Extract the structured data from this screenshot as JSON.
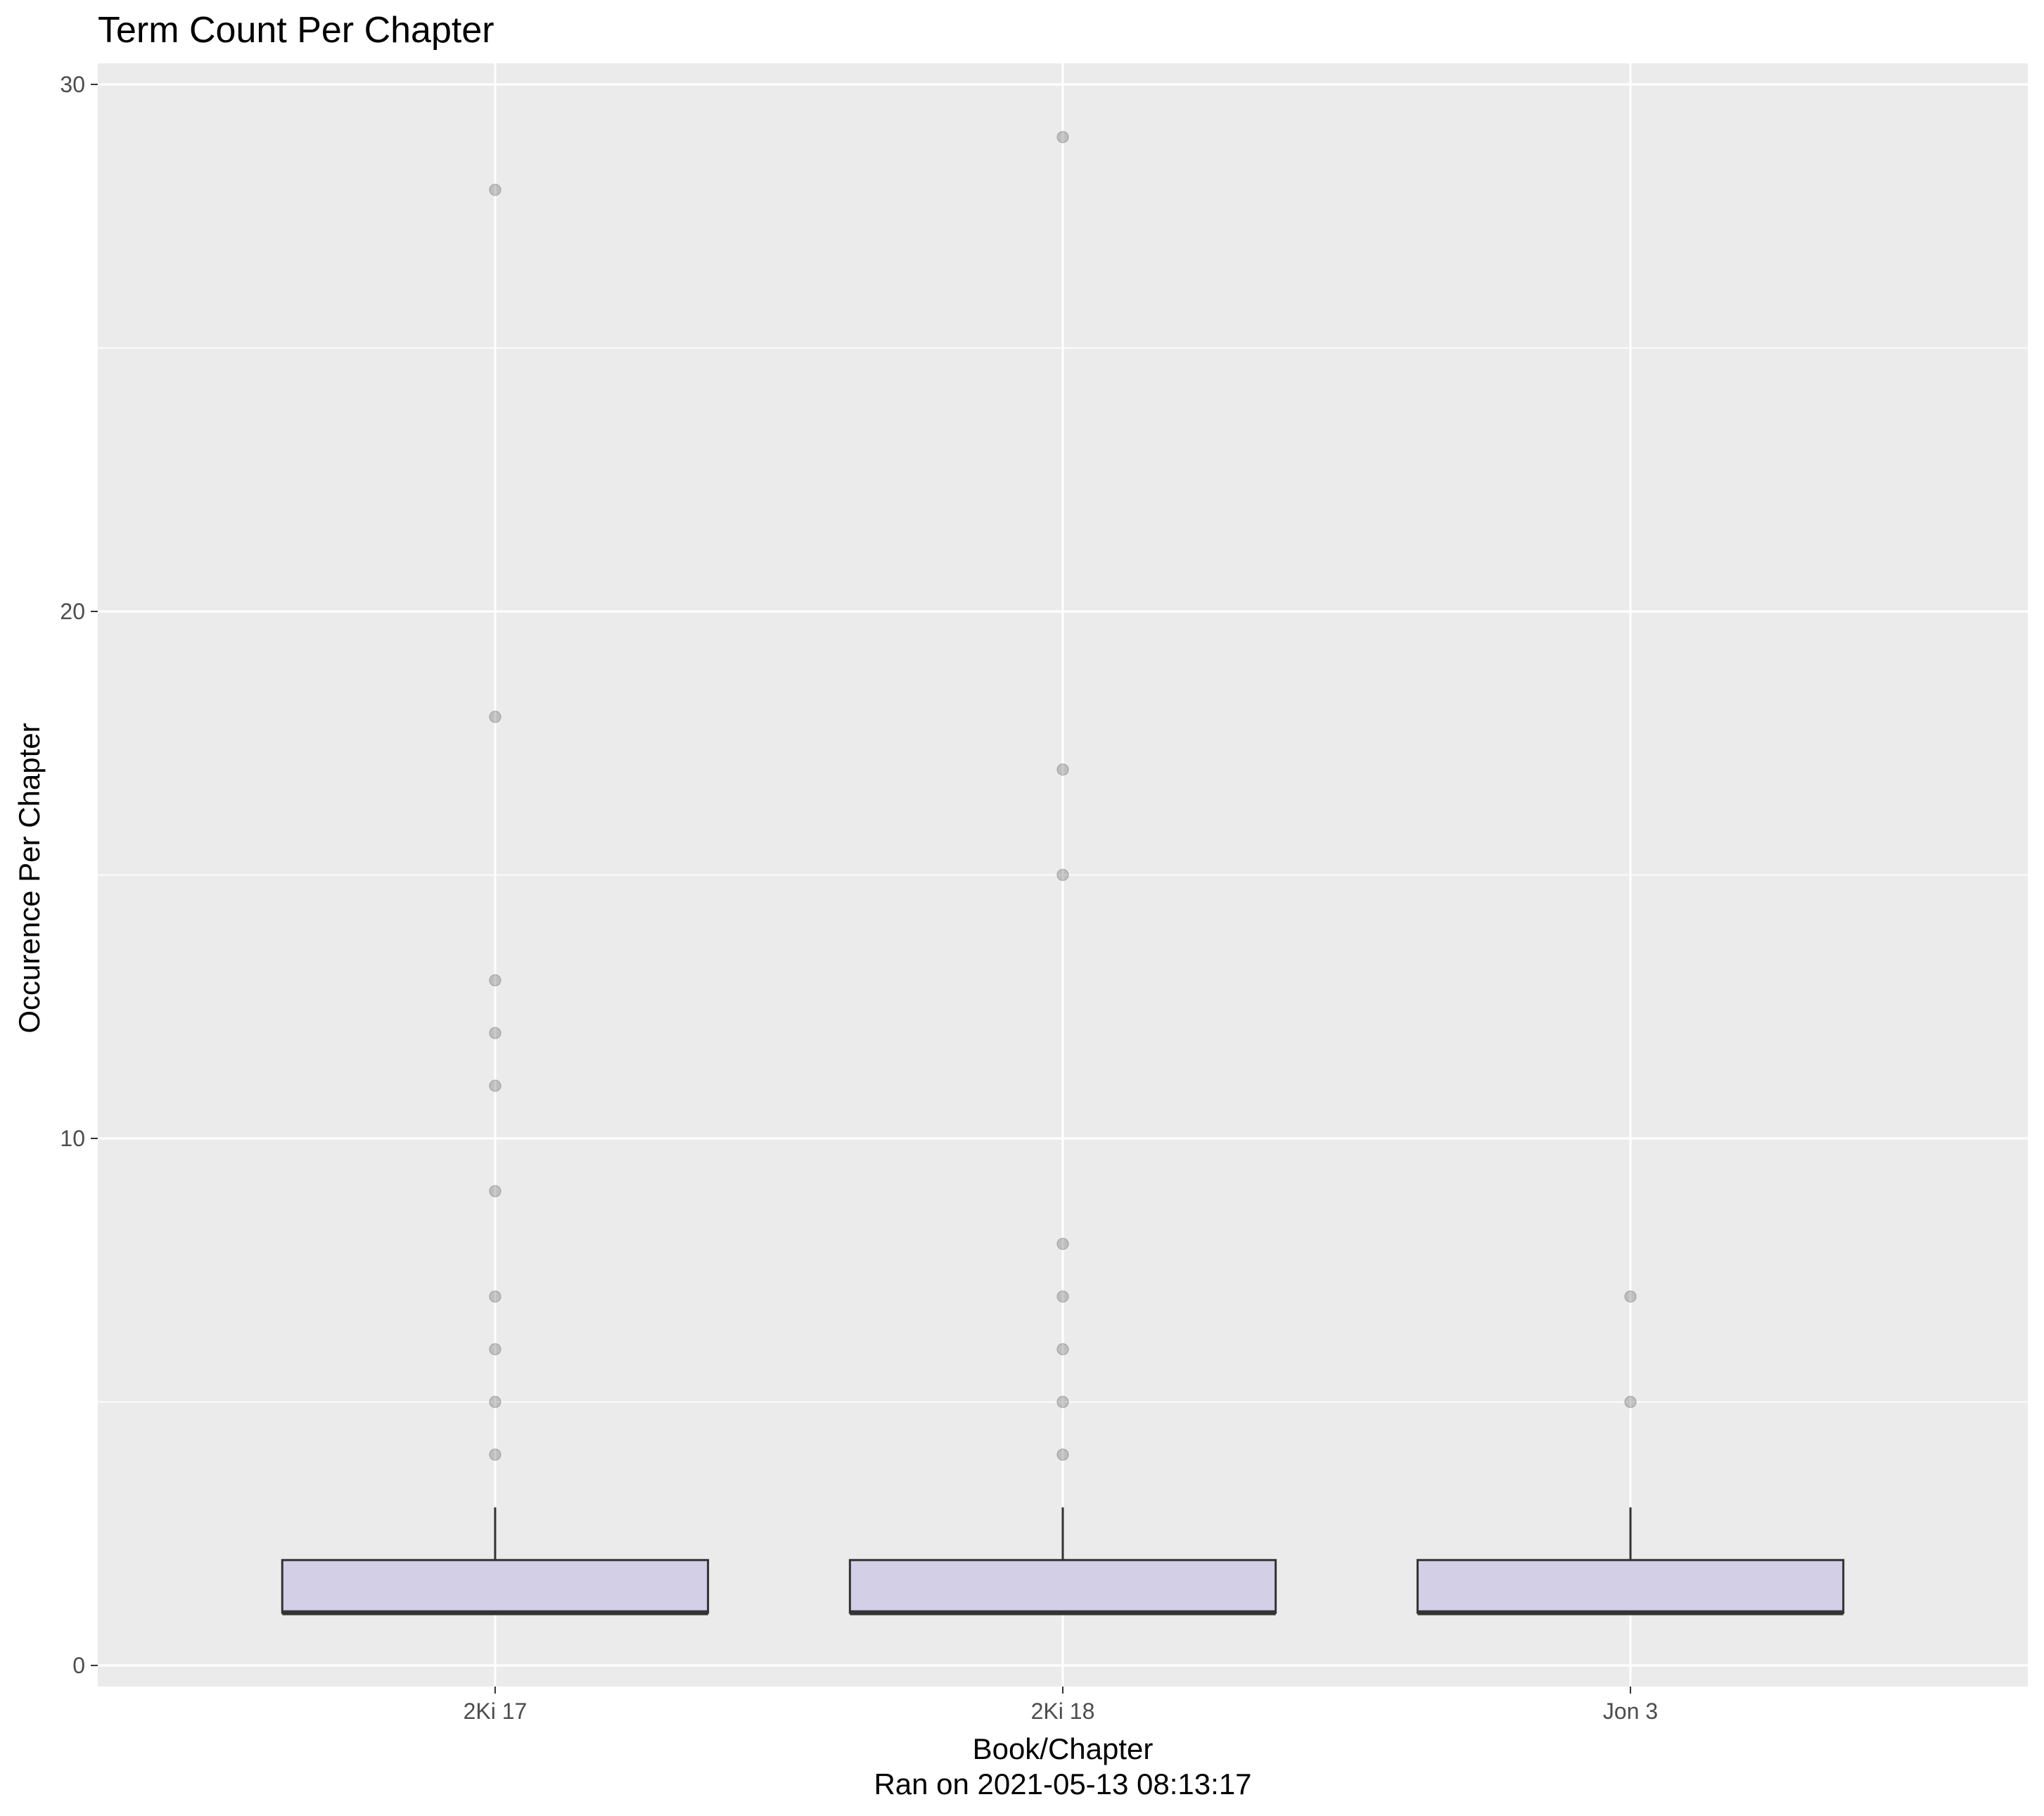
{
  "chart_data": {
    "type": "box",
    "title": "Term Count Per Chapter",
    "xlabel": "Book/Chapter",
    "caption": "Ran on 2021-05-13 08:13:17",
    "ylabel": "Occurence Per Chapter",
    "ylim": [
      -0.4,
      30.4
    ],
    "yticks": [
      0,
      10,
      20,
      30
    ],
    "grid": true,
    "background_color": "#EBEBEB",
    "box_fill": "#D2CFE6",
    "categories": [
      "2Ki 17",
      "2Ki 18",
      "Jon 3"
    ],
    "boxes": [
      {
        "category": "2Ki 17",
        "q1": 1,
        "median": 1,
        "q3": 2,
        "whisker_low": 1,
        "whisker_high": 3,
        "outliers": [
          28,
          18,
          13,
          12,
          11,
          9,
          7,
          6,
          5,
          4
        ]
      },
      {
        "category": "2Ki 18",
        "q1": 1,
        "median": 1,
        "q3": 2,
        "whisker_low": 1,
        "whisker_high": 3,
        "outliers": [
          29,
          17,
          15,
          8,
          7,
          6,
          5,
          4
        ]
      },
      {
        "category": "Jon 3",
        "q1": 1,
        "median": 1,
        "q3": 2,
        "whisker_low": 1,
        "whisker_high": 3,
        "outliers": [
          7,
          5
        ]
      }
    ]
  }
}
